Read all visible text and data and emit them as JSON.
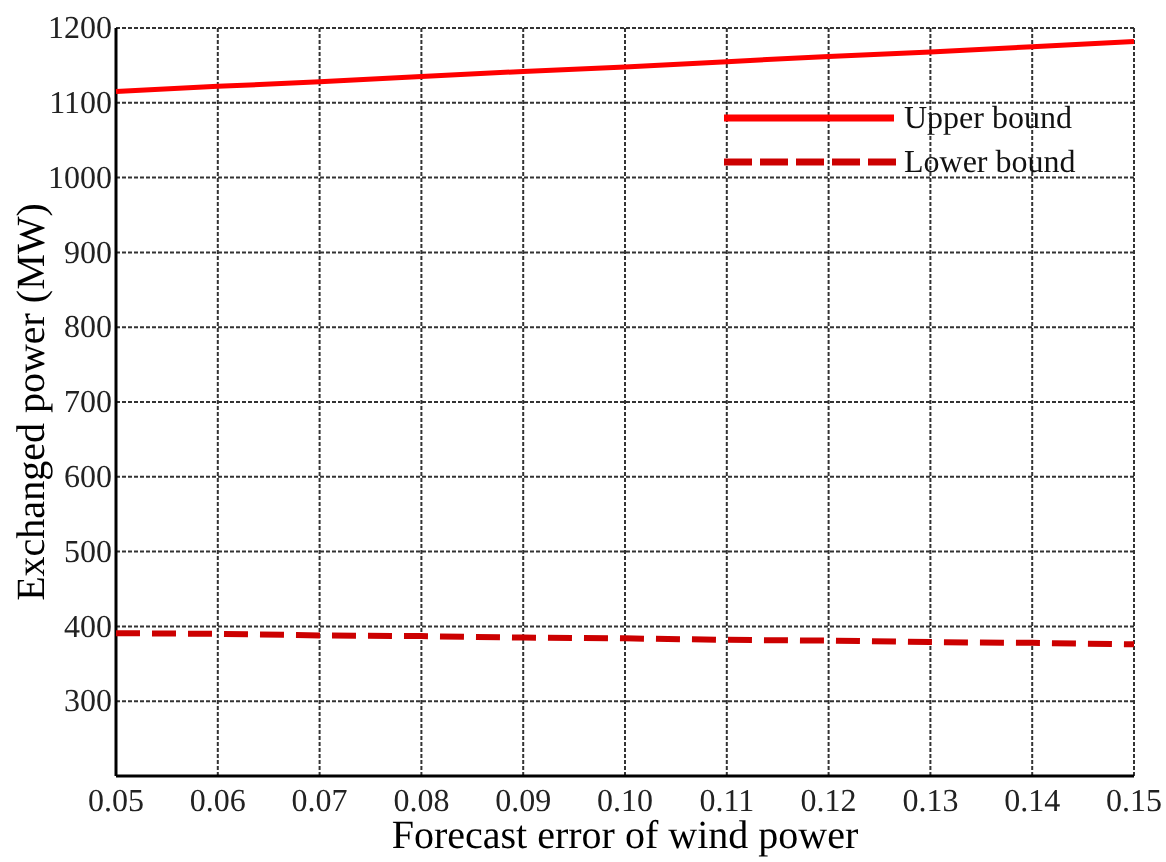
{
  "chart_data": {
    "type": "line",
    "xlabel": "Forecast error of wind power",
    "ylabel": "Exchanged power (MW)",
    "x": [
      0.05,
      0.06,
      0.07,
      0.08,
      0.09,
      0.1,
      0.11,
      0.12,
      0.13,
      0.14,
      0.15
    ],
    "series": [
      {
        "name": "Upper bound",
        "color": "#ff0000",
        "line_style": "solid",
        "values": [
          1115,
          1122,
          1128,
          1135,
          1142,
          1148,
          1155,
          1162,
          1168,
          1175,
          1182
        ]
      },
      {
        "name": "Lower bound",
        "color": "#cc0000",
        "line_style": "dashed",
        "values": [
          391,
          390,
          388,
          387,
          385,
          384,
          382,
          381,
          379,
          378,
          376
        ]
      }
    ],
    "xlim": [
      0.05,
      0.15
    ],
    "xticks": [
      0.05,
      0.06,
      0.07,
      0.08,
      0.09,
      {
        "value": 0.1,
        "label": "0.10"
      },
      0.11,
      0.12,
      0.13,
      0.14,
      0.15
    ],
    "ylim": [
      200,
      1200
    ],
    "yticks": [
      {
        "value": 200,
        "label": null
      },
      300,
      400,
      500,
      600,
      700,
      800,
      900,
      1000,
      1100,
      1200
    ],
    "grid": true,
    "legend": "top right",
    "marker": "none"
  }
}
